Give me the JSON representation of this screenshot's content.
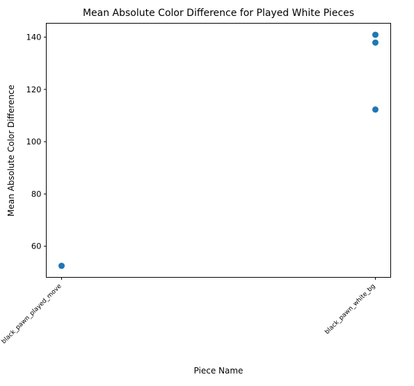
{
  "chart_data": {
    "type": "scatter",
    "title": "Mean Absolute Color Difference for Played White Pieces",
    "xlabel": "Piece Name",
    "ylabel": "Mean Absolute Color Difference",
    "categories": [
      "black_pawn_played_move",
      "black_pawn_white_bg"
    ],
    "points": [
      {
        "x": "black_pawn_played_move",
        "y": 52.5
      },
      {
        "x": "black_pawn_white_bg",
        "y": 112.3
      },
      {
        "x": "black_pawn_white_bg",
        "y": 137.9
      },
      {
        "x": "black_pawn_white_bg",
        "y": 140.9
      }
    ],
    "yticks": [
      60,
      80,
      100,
      120,
      140
    ],
    "ylim": [
      48.1,
      145.3
    ],
    "grid": false,
    "marker_color": "#1f77b4"
  }
}
